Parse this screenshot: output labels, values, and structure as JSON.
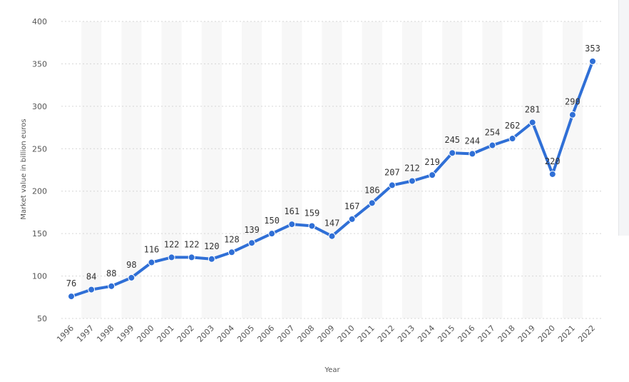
{
  "chart_data": {
    "type": "line",
    "xlabel": "Year",
    "ylabel": "Market value in billion euros",
    "ylim": [
      50,
      400
    ],
    "yticks": [
      50,
      100,
      150,
      200,
      250,
      300,
      350,
      400
    ],
    "grid": "horizontal dashed",
    "series_color": "#2f6fd6",
    "x": [
      "1996",
      "1997",
      "1998",
      "1999",
      "2000",
      "2001",
      "2002",
      "2003",
      "2004",
      "2005",
      "2006",
      "2007",
      "2008",
      "2009",
      "2010",
      "2011",
      "2012",
      "2013",
      "2014",
      "2015",
      "2016",
      "2017",
      "2018",
      "2019",
      "2020",
      "2021",
      "2022"
    ],
    "values": [
      76,
      84,
      88,
      98,
      116,
      122,
      122,
      120,
      128,
      139,
      150,
      161,
      159,
      147,
      167,
      186,
      207,
      212,
      219,
      245,
      244,
      254,
      262,
      281,
      220,
      290,
      353
    ]
  }
}
